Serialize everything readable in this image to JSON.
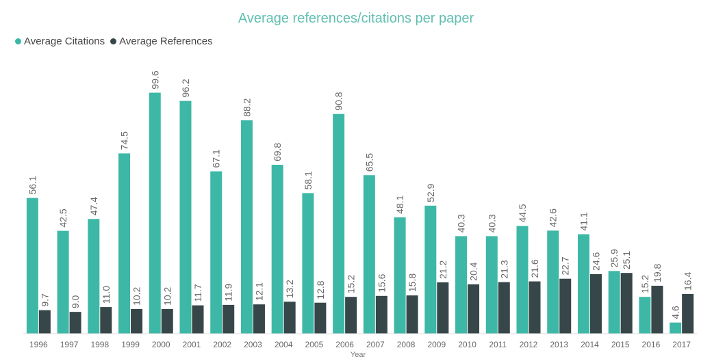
{
  "chart_data": {
    "type": "bar",
    "title": "Average references/citations per paper",
    "xlabel": "Year",
    "ylabel": "",
    "ylim": [
      0,
      104
    ],
    "categories": [
      "1996",
      "1997",
      "1998",
      "1999",
      "2000",
      "2001",
      "2002",
      "2003",
      "2004",
      "2005",
      "2006",
      "2007",
      "2008",
      "2009",
      "2010",
      "2011",
      "2012",
      "2013",
      "2014",
      "2015",
      "2016",
      "2017"
    ],
    "series": [
      {
        "name": "Average Citations",
        "color": "#3db8a6",
        "values": [
          56.1,
          42.5,
          47.4,
          74.5,
          99.6,
          96.2,
          67.1,
          88.2,
          69.8,
          58.1,
          90.8,
          65.5,
          48.1,
          52.9,
          40.3,
          40.3,
          44.5,
          42.6,
          41.1,
          25.9,
          15.2,
          4.6
        ]
      },
      {
        "name": "Average References",
        "color": "#374649",
        "values": [
          9.7,
          9.0,
          11.0,
          10.2,
          10.2,
          11.7,
          11.9,
          12.1,
          13.2,
          12.8,
          15.2,
          15.6,
          15.8,
          21.2,
          20.4,
          21.3,
          21.6,
          22.7,
          24.6,
          25.1,
          19.8,
          16.4
        ]
      }
    ],
    "data_labels": true,
    "grid": false,
    "legend_position": "top-left"
  }
}
